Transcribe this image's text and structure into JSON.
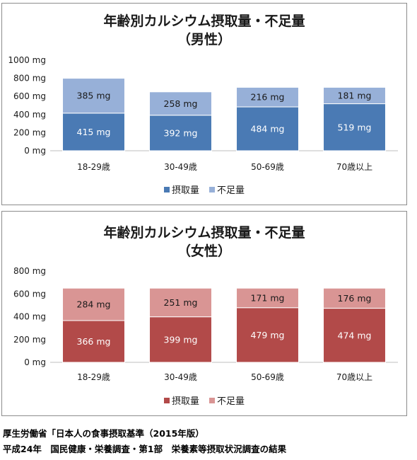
{
  "chart_data": [
    {
      "type": "bar",
      "stacked": true,
      "title": "年齢別カルシウム摂取量・不足量",
      "subtitle": "（男性）",
      "categories": [
        "18-29歳",
        "30-49歳",
        "50-69歳",
        "70歳以上"
      ],
      "series": [
        {
          "name": "摂取量",
          "values": [
            415,
            392,
            484,
            519
          ],
          "labels": [
            "415 mg",
            "392 mg",
            "484 mg",
            "519 mg"
          ],
          "color": "#4a7ab4",
          "label_color": "#ffffff"
        },
        {
          "name": "不足量",
          "values": [
            385,
            258,
            216,
            181
          ],
          "labels": [
            "385 mg",
            "258 mg",
            "216 mg",
            "181 mg"
          ],
          "color": "#97b0d8",
          "label_color": "#1a1a1a"
        }
      ],
      "ylim": [
        0,
        1000
      ],
      "yticks": [
        0,
        200,
        400,
        600,
        800,
        1000
      ],
      "ytick_labels": [
        "0 mg",
        "200 mg",
        "400 mg",
        "600 mg",
        "800 mg",
        "1000 mg"
      ],
      "grid": false,
      "legend": "bottom"
    },
    {
      "type": "bar",
      "stacked": true,
      "title": "年齢別カルシウム摂取量・不足量",
      "subtitle": "（女性）",
      "categories": [
        "18-29歳",
        "30-49歳",
        "50-69歳",
        "70歳以上"
      ],
      "series": [
        {
          "name": "摂取量",
          "values": [
            366,
            399,
            479,
            474
          ],
          "labels": [
            "366 mg",
            "399 mg",
            "479 mg",
            "474 mg"
          ],
          "color": "#b24a49",
          "label_color": "#ffffff"
        },
        {
          "name": "不足量",
          "values": [
            284,
            251,
            171,
            176
          ],
          "labels": [
            "284 mg",
            "251 mg",
            "171 mg",
            "176 mg"
          ],
          "color": "#d99594",
          "label_color": "#1a1a1a"
        }
      ],
      "ylim": [
        0,
        800
      ],
      "yticks": [
        0,
        200,
        400,
        600,
        800
      ],
      "ytick_labels": [
        "0 mg",
        "200 mg",
        "400 mg",
        "600 mg",
        "800 mg"
      ],
      "grid": false,
      "legend": "bottom"
    }
  ],
  "footer": {
    "line1": "厚生労働省「日本人の食事摂取基準（2015年版）",
    "line2": "平成24年　国民健康・栄養調査・第1部　栄養素等摂取状況調査の結果"
  }
}
